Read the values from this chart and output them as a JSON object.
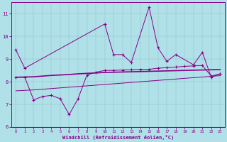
{
  "xlabel": "Windchill (Refroidissement éolien,°C)",
  "bg_color": "#b0e0e8",
  "line_color": "#880088",
  "xlim": [
    -0.5,
    23.5
  ],
  "ylim": [
    6,
    11.5
  ],
  "yticks": [
    6,
    7,
    8,
    9,
    10,
    11
  ],
  "xticks": [
    0,
    1,
    2,
    3,
    4,
    5,
    6,
    7,
    8,
    9,
    10,
    11,
    12,
    13,
    14,
    15,
    16,
    17,
    18,
    19,
    20,
    21,
    22,
    23
  ],
  "series1_x": [
    0,
    1,
    10,
    11,
    12,
    13,
    15,
    16,
    17,
    18,
    20,
    21,
    22,
    23
  ],
  "series1_y": [
    9.4,
    8.6,
    10.55,
    9.2,
    9.2,
    8.85,
    11.3,
    9.5,
    8.9,
    9.2,
    8.75,
    9.3,
    8.2,
    8.35
  ],
  "series2_x": [
    0,
    1,
    2,
    3,
    4,
    5,
    6,
    7,
    8,
    9,
    10,
    11,
    12,
    13,
    14,
    15,
    16,
    17,
    18,
    19,
    20,
    21,
    22,
    23
  ],
  "series2_y": [
    8.2,
    8.2,
    7.2,
    7.35,
    7.4,
    7.25,
    6.55,
    7.25,
    8.3,
    8.42,
    8.5,
    8.5,
    8.52,
    8.53,
    8.55,
    8.55,
    8.6,
    8.62,
    8.65,
    8.68,
    8.7,
    8.72,
    8.25,
    8.35
  ],
  "series3_y": [
    8.2,
    8.21,
    8.22,
    8.25,
    8.28,
    8.3,
    8.32,
    8.35,
    8.37,
    8.39,
    8.41,
    8.42,
    8.43,
    8.44,
    8.45,
    8.46,
    8.47,
    8.48,
    8.49,
    8.5,
    8.51,
    8.52,
    8.53,
    8.54
  ],
  "series4_y": [
    7.6,
    7.62,
    7.64,
    7.67,
    7.7,
    7.73,
    7.76,
    7.79,
    7.82,
    7.85,
    7.88,
    7.91,
    7.94,
    7.97,
    8.0,
    8.03,
    8.06,
    8.09,
    8.12,
    8.15,
    8.18,
    8.21,
    8.24,
    8.27
  ]
}
